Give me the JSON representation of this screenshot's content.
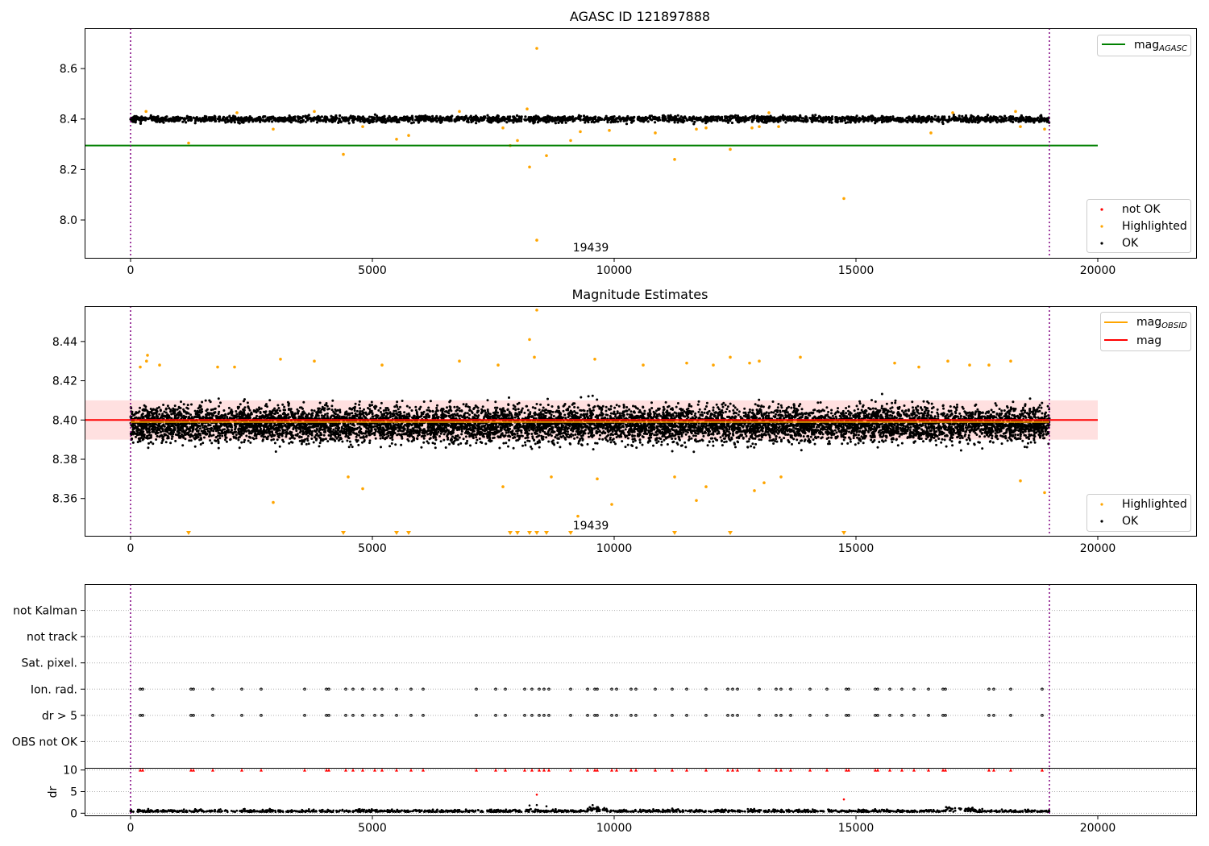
{
  "figure": {
    "panel1_title": "AGASC ID 121897888",
    "panel2_title": "Magnitude Estimates",
    "obsid_annotation": "19439",
    "vlines_x": [
      0,
      19000
    ]
  },
  "legends": {
    "panel1_line": "mag",
    "panel1_line_sub": "AGASC",
    "panel1_points": [
      "not OK",
      "Highlighted",
      "OK"
    ],
    "panel2_line1": "mag",
    "panel2_line1_sub": "OBSID",
    "panel2_line2": "mag",
    "panel2_points": [
      "Highlighted",
      "OK"
    ]
  },
  "colors": {
    "ok": "#000000",
    "highlighted": "#ffa500",
    "not_ok": "#ff0000",
    "mag_agasc": "#008000",
    "mag_obsid": "#ffa500",
    "mag_line": "#ff0000",
    "band": "#ff9999",
    "vline": "#800080"
  },
  "chart_data": [
    {
      "type": "scatter",
      "title": "AGASC ID 121897888",
      "xlim": [
        -950,
        22050
      ],
      "ylim": [
        7.85,
        8.76
      ],
      "xticks": [
        0,
        5000,
        10000,
        15000,
        20000
      ],
      "yticks": [
        8.0,
        8.2,
        8.4,
        8.6
      ],
      "ok_band": {
        "x": [
          0,
          19000
        ],
        "center": 8.4,
        "spread": 0.025,
        "n_points": 2500
      },
      "mag_agasc": {
        "value": 8.295,
        "x": [
          -950,
          20000
        ]
      },
      "highlighted": [
        [
          1200,
          8.305
        ],
        [
          2950,
          8.36
        ],
        [
          4400,
          8.26
        ],
        [
          4800,
          8.37
        ],
        [
          5500,
          8.32
        ],
        [
          5750,
          8.335
        ],
        [
          7700,
          8.365
        ],
        [
          7850,
          8.295
        ],
        [
          8000,
          8.315
        ],
        [
          8250,
          8.21
        ],
        [
          8400,
          8.68
        ],
        [
          8400,
          7.92
        ],
        [
          8600,
          8.255
        ],
        [
          9100,
          8.315
        ],
        [
          9300,
          8.35
        ],
        [
          9900,
          8.355
        ],
        [
          10850,
          8.345
        ],
        [
          11250,
          8.24
        ],
        [
          11700,
          8.36
        ],
        [
          11900,
          8.365
        ],
        [
          12400,
          8.28
        ],
        [
          12850,
          8.365
        ],
        [
          13000,
          8.37
        ],
        [
          13400,
          8.37
        ],
        [
          14750,
          8.085
        ],
        [
          16550,
          8.345
        ],
        [
          18400,
          8.37
        ],
        [
          18900,
          8.36
        ],
        [
          320,
          8.43
        ],
        [
          2200,
          8.425
        ],
        [
          3800,
          8.43
        ],
        [
          6800,
          8.43
        ],
        [
          8200,
          8.44
        ],
        [
          13200,
          8.425
        ],
        [
          17000,
          8.425
        ],
        [
          18300,
          8.43
        ]
      ],
      "legend": [
        "mag_AGASC",
        "not OK",
        "Highlighted",
        "OK"
      ],
      "legend_placement": [
        "top-right",
        "bottom-right"
      ],
      "annotation": "19439"
    },
    {
      "type": "scatter",
      "title": "Magnitude Estimates",
      "xlim": [
        -950,
        22050
      ],
      "ylim": [
        8.341,
        8.458
      ],
      "xticks": [
        0,
        5000,
        10000,
        15000,
        20000
      ],
      "yticks": [
        8.36,
        8.38,
        8.4,
        8.42,
        8.44
      ],
      "ok_band": {
        "x": [
          0,
          19000
        ],
        "center": 8.398,
        "spread": 0.014,
        "n_points": 9000
      },
      "mag": {
        "value": 8.4,
        "band": [
          8.39,
          8.41
        ],
        "x": [
          -950,
          20000
        ]
      },
      "mag_obsid": {
        "value": 8.399,
        "x": [
          0,
          19000
        ]
      },
      "highlighted": [
        [
          200,
          8.427
        ],
        [
          330,
          8.43
        ],
        [
          350,
          8.433
        ],
        [
          600,
          8.428
        ],
        [
          1800,
          8.427
        ],
        [
          2150,
          8.427
        ],
        [
          2950,
          8.358
        ],
        [
          3100,
          8.431
        ],
        [
          3800,
          8.43
        ],
        [
          4500,
          8.371
        ],
        [
          4800,
          8.365
        ],
        [
          5200,
          8.428
        ],
        [
          6800,
          8.43
        ],
        [
          7600,
          8.428
        ],
        [
          7700,
          8.366
        ],
        [
          8250,
          8.441
        ],
        [
          8350,
          8.432
        ],
        [
          8400,
          8.456
        ],
        [
          8700,
          8.371
        ],
        [
          9250,
          8.351
        ],
        [
          9600,
          8.431
        ],
        [
          9650,
          8.37
        ],
        [
          9950,
          8.357
        ],
        [
          10600,
          8.428
        ],
        [
          11250,
          8.371
        ],
        [
          11500,
          8.429
        ],
        [
          11700,
          8.359
        ],
        [
          11900,
          8.366
        ],
        [
          12050,
          8.428
        ],
        [
          12400,
          8.432
        ],
        [
          12800,
          8.429
        ],
        [
          12900,
          8.364
        ],
        [
          13000,
          8.43
        ],
        [
          13100,
          8.368
        ],
        [
          13450,
          8.371
        ],
        [
          13850,
          8.432
        ],
        [
          15800,
          8.429
        ],
        [
          16300,
          8.427
        ],
        [
          16900,
          8.43
        ],
        [
          17350,
          8.428
        ],
        [
          17750,
          8.428
        ],
        [
          18200,
          8.43
        ],
        [
          18400,
          8.369
        ],
        [
          18900,
          8.363
        ]
      ],
      "below_range_markers_x": [
        1200,
        4400,
        5500,
        5750,
        7850,
        8000,
        8250,
        8400,
        8600,
        9100,
        11250,
        12400,
        14750
      ],
      "legend": [
        "mag_OBSID",
        "mag",
        "Highlighted",
        "OK"
      ],
      "legend_placement": [
        "top-right",
        "bottom-right"
      ],
      "annotation": "19439"
    },
    {
      "type": "scatter",
      "title": "",
      "xlim": [
        -950,
        22050
      ],
      "xticks": [
        0,
        5000,
        10000,
        15000,
        20000
      ],
      "flag_rows": [
        "not Kalman",
        "not track",
        "Sat. pixel.",
        "Ion. rad.",
        "dr > 5",
        "OBS not OK"
      ],
      "flag_events_x": [
        200,
        250,
        1250,
        1300,
        1700,
        2300,
        2700,
        3600,
        4050,
        4100,
        4450,
        4600,
        4800,
        5050,
        5200,
        5500,
        5800,
        6050,
        7150,
        7550,
        7750,
        8150,
        8300,
        8450,
        8550,
        8650,
        9100,
        9450,
        9600,
        9650,
        9950,
        10050,
        10350,
        10450,
        10850,
        11200,
        11500,
        11900,
        12350,
        12450,
        12550,
        13000,
        13350,
        13450,
        13650,
        14050,
        14400,
        14800,
        14850,
        15400,
        15450,
        15700,
        15950,
        16200,
        16500,
        16800,
        16850,
        17750,
        17850,
        18200,
        18850
      ],
      "dr": {
        "ylabel": "dr",
        "ylim": [
          -0.5,
          10.5
        ],
        "yticks": [
          0,
          5,
          10
        ],
        "baseline": 0.3,
        "spikes": [
          [
            8250,
            1.8
          ],
          [
            8400,
            4.3
          ],
          [
            8400,
            1.9
          ],
          [
            8600,
            1.6
          ],
          [
            14750,
            3.2
          ]
        ]
      }
    }
  ]
}
